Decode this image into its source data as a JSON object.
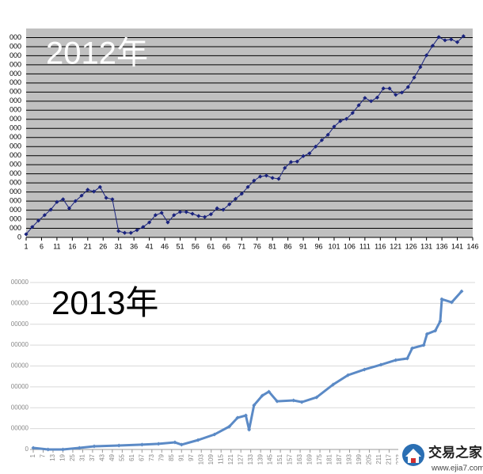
{
  "chart_data": [
    {
      "type": "line",
      "title": "2012年",
      "color": "#1a237e",
      "background": "#c0c0c0",
      "grid": true,
      "x": [
        1,
        3,
        5,
        7,
        9,
        11,
        13,
        15,
        17,
        19,
        21,
        23,
        25,
        27,
        29,
        31,
        33,
        35,
        37,
        39,
        41,
        43,
        45,
        47,
        49,
        51,
        53,
        55,
        57,
        59,
        61,
        63,
        65,
        67,
        69,
        71,
        73,
        75,
        77,
        79,
        81,
        83,
        85,
        87,
        89,
        91,
        93,
        95,
        97,
        99,
        101,
        103,
        105,
        107,
        109,
        111,
        113,
        115,
        117,
        119,
        121,
        123,
        125,
        127,
        129,
        131,
        133,
        135,
        137,
        139,
        141,
        143
      ],
      "series": [
        {
          "values": [
            350,
            1150,
            1850,
            2450,
            3050,
            3900,
            4200,
            3200,
            4000,
            4600,
            5250,
            5050,
            5550,
            4350,
            4200,
            700,
            500,
            500,
            800,
            1150,
            1650,
            2450,
            2700,
            1650,
            2450,
            2800,
            2800,
            2600,
            2350,
            2250,
            2550,
            3200,
            3050,
            3650,
            4250,
            4800,
            5550,
            6250,
            6700,
            6800,
            6550,
            6450,
            7650,
            8300,
            8350,
            8950,
            9250,
            10000,
            10700,
            11300,
            12200,
            12800,
            13050,
            13700,
            14550,
            15350,
            15000,
            15400,
            16400,
            16400,
            15700,
            15950,
            16550,
            17600,
            18750,
            20050,
            21100,
            22050,
            21700,
            21800,
            21500,
            22150
          ]
        }
      ],
      "xlim": [
        1,
        146
      ],
      "xticks": [
        1,
        6,
        11,
        16,
        21,
        26,
        31,
        36,
        41,
        46,
        51,
        56,
        61,
        66,
        71,
        76,
        81,
        86,
        91,
        96,
        101,
        106,
        111,
        116,
        121,
        126,
        131,
        136,
        141,
        146
      ],
      "ylim": [
        0,
        23000
      ],
      "yticks": [
        0,
        {
          "value": 1000,
          "label": "000"
        },
        {
          "value": 2000,
          "label": "000"
        },
        {
          "value": 3000,
          "label": "000"
        },
        {
          "value": 4000,
          "label": "000"
        },
        {
          "value": 5000,
          "label": "000"
        },
        {
          "value": 6000,
          "label": "000"
        },
        {
          "value": 7000,
          "label": "000"
        },
        {
          "value": 8000,
          "label": "000"
        },
        {
          "value": 9000,
          "label": "000"
        },
        {
          "value": 10000,
          "label": "000"
        },
        {
          "value": 11000,
          "label": "000"
        },
        {
          "value": 12000,
          "label": "000"
        },
        {
          "value": 13000,
          "label": "000"
        },
        {
          "value": 14000,
          "label": "000"
        },
        {
          "value": 15000,
          "label": "000"
        },
        {
          "value": 16000,
          "label": "000"
        },
        {
          "value": 17000,
          "label": "000"
        },
        {
          "value": 18000,
          "label": "000"
        },
        {
          "value": 19000,
          "label": "000"
        },
        {
          "value": 20000,
          "label": "000"
        },
        {
          "value": 21000,
          "label": "000"
        },
        {
          "value": 22000,
          "label": "000"
        }
      ]
    },
    {
      "type": "line",
      "title": "2013年",
      "color": "#5b8ac6",
      "background": "#ffffff",
      "grid": true,
      "x": [
        1,
        10,
        19,
        29,
        38,
        53,
        67,
        77,
        87,
        91,
        101,
        111,
        120,
        125,
        130,
        132,
        135,
        140,
        144,
        149,
        159,
        164,
        173,
        183,
        192,
        202,
        212,
        221,
        228,
        231,
        238,
        240,
        245,
        248,
        249,
        255,
        261
      ],
      "series": [
        {
          "values": [
            7500,
            0,
            0,
            7500,
            15000,
            19000,
            23000,
            27000,
            34000,
            23000,
            45000,
            72000,
            110000,
            152000,
            163000,
            95000,
            212000,
            258000,
            277000,
            231000,
            235000,
            227000,
            250000,
            311000,
            356000,
            383000,
            406000,
            428000,
            436000,
            485000,
            500000,
            553000,
            569000,
            614000,
            720000,
            705000,
            758000
          ]
        }
      ],
      "xlim": [
        1,
        261
      ],
      "xticks": [
        1,
        7,
        13,
        19,
        25,
        31,
        37,
        43,
        49,
        55,
        61,
        67,
        73,
        79,
        85,
        91,
        97,
        103,
        109,
        115,
        121,
        127,
        133,
        139,
        145,
        151,
        157,
        163,
        169,
        175,
        181,
        187,
        193,
        199,
        205,
        211,
        217,
        223,
        229
      ],
      "ylim": [
        0,
        800000
      ],
      "yticks": [
        0,
        {
          "value": 100000,
          "label": "00000"
        },
        {
          "value": 200000,
          "label": "00000"
        },
        {
          "value": 300000,
          "label": "00000"
        },
        {
          "value": 400000,
          "label": "00000"
        },
        {
          "value": 500000,
          "label": "00000"
        },
        {
          "value": 600000,
          "label": "00000"
        },
        {
          "value": 700000,
          "label": "00000"
        },
        {
          "value": 800000,
          "label": "00000"
        }
      ]
    }
  ],
  "watermark": {
    "name": "交易之家",
    "url": "www.ejia7.com"
  }
}
